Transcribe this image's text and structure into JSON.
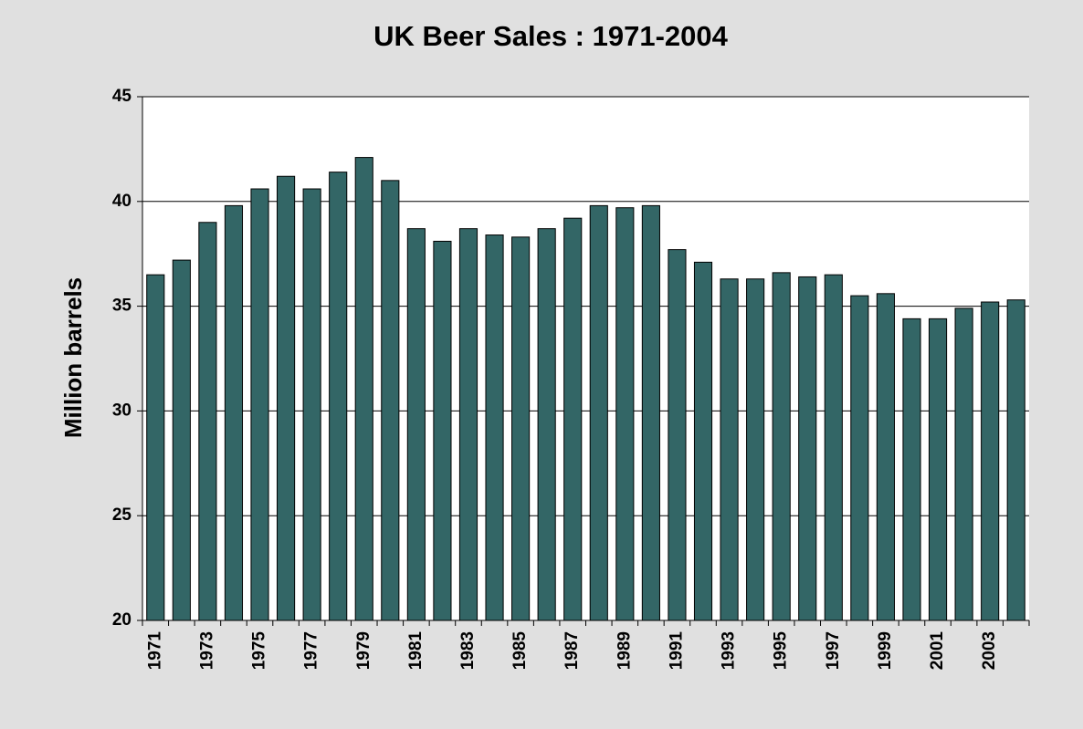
{
  "chart_data": {
    "type": "bar",
    "title": "UK Beer Sales : 1971-2004",
    "y_label": "Million barrels",
    "categories": [
      "1971",
      null,
      "1973",
      null,
      "1975",
      null,
      "1977",
      null,
      "1979",
      null,
      "1981",
      null,
      "1983",
      null,
      "1985",
      null,
      "1987",
      null,
      "1989",
      null,
      "1991",
      null,
      "1993",
      null,
      "1995",
      null,
      "1997",
      null,
      "1999",
      null,
      "2001",
      null,
      "2003",
      null
    ],
    "values": [
      36.5,
      37.2,
      39.0,
      39.8,
      40.6,
      41.2,
      40.6,
      41.4,
      42.1,
      41.0,
      38.7,
      38.1,
      38.7,
      38.4,
      38.3,
      38.7,
      39.2,
      39.8,
      39.7,
      39.8,
      37.7,
      37.1,
      36.3,
      36.3,
      36.6,
      36.4,
      36.5,
      35.5,
      35.6,
      34.4,
      34.4,
      34.9,
      35.2,
      35.3
    ],
    "color": "#336666",
    "ylim": [
      20,
      45
    ],
    "yticks": [
      20,
      25,
      30,
      35,
      40,
      45
    ],
    "grid": true
  }
}
